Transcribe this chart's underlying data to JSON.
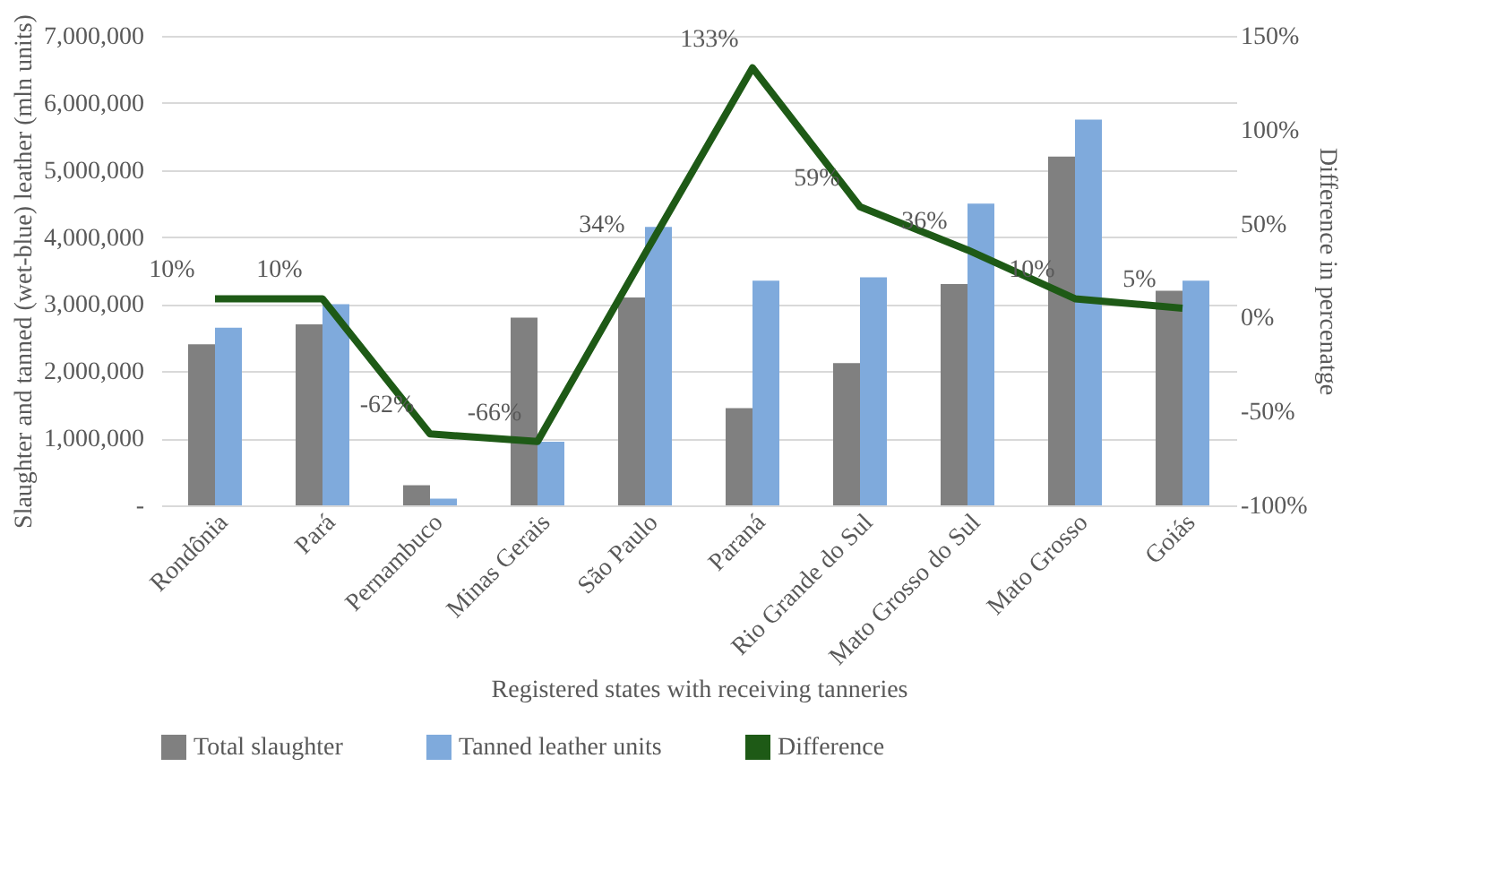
{
  "chart_data": {
    "type": "bar",
    "xlabel": "Registered states with receiving tanneries",
    "ylabel": "Slaughter and  tanned (wet-blue) leather (mln units)",
    "y2label": "Difference in percenatge",
    "categories": [
      "Rondônia",
      "Pará",
      "Pernambuco",
      "Minas Gerais",
      "São Paulo",
      "Paraná",
      "Rio Grande do Sul",
      "Mato Grosso do Sul",
      "Mato Grosso",
      "Goiás"
    ],
    "series": [
      {
        "name": "Total slaughter",
        "type": "bar",
        "color": "#808080",
        "values": [
          2400000,
          2700000,
          300000,
          2800000,
          3100000,
          1450000,
          2120000,
          3300000,
          5200000,
          3200000
        ]
      },
      {
        "name": "Tanned leather units",
        "type": "bar",
        "color": "#7faadc",
        "values": [
          2650000,
          3000000,
          100000,
          950000,
          4150000,
          3350000,
          3400000,
          4500000,
          5750000,
          3350000
        ]
      },
      {
        "name": "Difference",
        "type": "line",
        "axis": "y2",
        "color": "#1e5a16",
        "values": [
          10,
          10,
          -62,
          -66,
          34,
          133,
          59,
          36,
          10,
          5
        ],
        "value_labels": [
          "10%",
          "10%",
          "-62%",
          "-66%",
          "34%",
          "133%",
          "59%",
          "36%",
          "10%",
          "5%"
        ]
      }
    ],
    "ylim": [
      0,
      7000000
    ],
    "yticks": [
      {
        "value": 0,
        "label": "-"
      },
      {
        "value": 1000000,
        "label": "1,000,000"
      },
      {
        "value": 2000000,
        "label": "2,000,000"
      },
      {
        "value": 3000000,
        "label": "3,000,000"
      },
      {
        "value": 4000000,
        "label": "4,000,000"
      },
      {
        "value": 5000000,
        "label": "5,000,000"
      },
      {
        "value": 6000000,
        "label": "6,000,000"
      },
      {
        "value": 7000000,
        "label": "7,000,000"
      }
    ],
    "y2lim": [
      -100,
      150
    ],
    "y2ticks": [
      {
        "value": -100,
        "label": "-100%"
      },
      {
        "value": -50,
        "label": "-50%"
      },
      {
        "value": 0,
        "label": "0%"
      },
      {
        "value": 50,
        "label": "50%"
      },
      {
        "value": 100,
        "label": "100%"
      },
      {
        "value": 150,
        "label": "150%"
      }
    ],
    "grid": "y",
    "legend": "bottom",
    "marker": "none",
    "line_style": "solid"
  }
}
